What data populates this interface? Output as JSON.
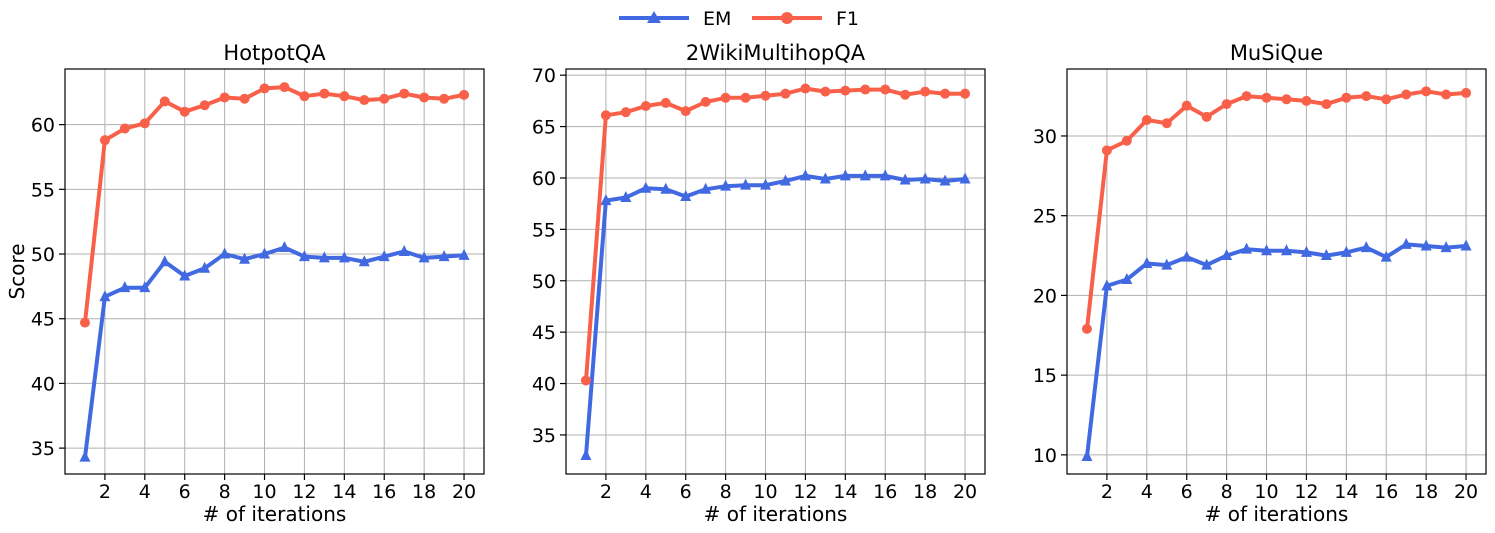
{
  "legend": [
    {
      "name": "EM",
      "color": "#4169e1",
      "marker": "triangle"
    },
    {
      "name": "F1",
      "color": "#f9604a",
      "marker": "circle"
    }
  ],
  "legend_placement": "top-center",
  "chart_data": [
    {
      "type": "line",
      "title": "HotpotQA",
      "xlabel": "# of iterations",
      "ylabel": "Score",
      "grid": true,
      "xlim": [
        0,
        21
      ],
      "ylim": [
        33,
        64.3
      ],
      "xticks": [
        2,
        4,
        6,
        8,
        10,
        12,
        14,
        16,
        18,
        20
      ],
      "yticks": [
        35,
        40,
        45,
        50,
        55,
        60
      ],
      "x": [
        1,
        2,
        3,
        4,
        5,
        6,
        7,
        8,
        9,
        10,
        11,
        12,
        13,
        14,
        15,
        16,
        17,
        18,
        19,
        20
      ],
      "series": [
        {
          "name": "EM",
          "color": "#4169e1",
          "marker": "triangle",
          "values": [
            34.3,
            46.7,
            47.4,
            47.4,
            49.4,
            48.3,
            48.9,
            50.0,
            49.6,
            50.0,
            50.5,
            49.8,
            49.7,
            49.7,
            49.4,
            49.8,
            50.2,
            49.7,
            49.8,
            49.9
          ]
        },
        {
          "name": "F1",
          "color": "#f9604a",
          "marker": "circle",
          "values": [
            44.7,
            58.8,
            59.7,
            60.1,
            61.8,
            61.0,
            61.5,
            62.1,
            62.0,
            62.8,
            62.9,
            62.2,
            62.4,
            62.2,
            61.9,
            62.0,
            62.4,
            62.1,
            62.0,
            62.3
          ]
        }
      ]
    },
    {
      "type": "line",
      "title": "2WikiMultihopQA",
      "xlabel": "# of iterations",
      "ylabel": "",
      "grid": true,
      "xlim": [
        0,
        21
      ],
      "ylim": [
        31.2,
        70.6
      ],
      "xticks": [
        2,
        4,
        6,
        8,
        10,
        12,
        14,
        16,
        18,
        20
      ],
      "yticks": [
        35,
        40,
        45,
        50,
        55,
        60,
        65,
        70
      ],
      "x": [
        1,
        2,
        3,
        4,
        5,
        6,
        7,
        8,
        9,
        10,
        11,
        12,
        13,
        14,
        15,
        16,
        17,
        18,
        19,
        20
      ],
      "series": [
        {
          "name": "EM",
          "color": "#4169e1",
          "marker": "triangle",
          "values": [
            33.0,
            57.8,
            58.1,
            59.0,
            58.9,
            58.2,
            58.9,
            59.2,
            59.3,
            59.3,
            59.7,
            60.2,
            59.9,
            60.2,
            60.2,
            60.2,
            59.8,
            59.9,
            59.7,
            59.9
          ]
        },
        {
          "name": "F1",
          "color": "#f9604a",
          "marker": "circle",
          "values": [
            40.3,
            66.1,
            66.4,
            67.0,
            67.3,
            66.5,
            67.4,
            67.8,
            67.8,
            68.0,
            68.2,
            68.7,
            68.4,
            68.5,
            68.6,
            68.6,
            68.1,
            68.4,
            68.2,
            68.2
          ]
        }
      ]
    },
    {
      "type": "line",
      "title": "MuSiQue",
      "xlabel": "# of iterations",
      "ylabel": "",
      "grid": true,
      "xlim": [
        0,
        21
      ],
      "ylim": [
        8.8,
        34.2
      ],
      "xticks": [
        2,
        4,
        6,
        8,
        10,
        12,
        14,
        16,
        18,
        20
      ],
      "yticks": [
        10,
        15,
        20,
        25,
        30
      ],
      "x": [
        1,
        2,
        3,
        4,
        5,
        6,
        7,
        8,
        9,
        10,
        11,
        12,
        13,
        14,
        15,
        16,
        17,
        18,
        19,
        20
      ],
      "series": [
        {
          "name": "EM",
          "color": "#4169e1",
          "marker": "triangle",
          "values": [
            9.9,
            20.6,
            21.0,
            22.0,
            21.9,
            22.4,
            21.9,
            22.5,
            22.9,
            22.8,
            22.8,
            22.7,
            22.5,
            22.7,
            23.0,
            22.4,
            23.2,
            23.1,
            23.0,
            23.1
          ]
        },
        {
          "name": "F1",
          "color": "#f9604a",
          "marker": "circle",
          "values": [
            17.9,
            29.1,
            29.7,
            31.0,
            30.8,
            31.9,
            31.2,
            32.0,
            32.5,
            32.4,
            32.3,
            32.2,
            32.0,
            32.4,
            32.5,
            32.3,
            32.6,
            32.8,
            32.6,
            32.7
          ]
        }
      ]
    }
  ]
}
